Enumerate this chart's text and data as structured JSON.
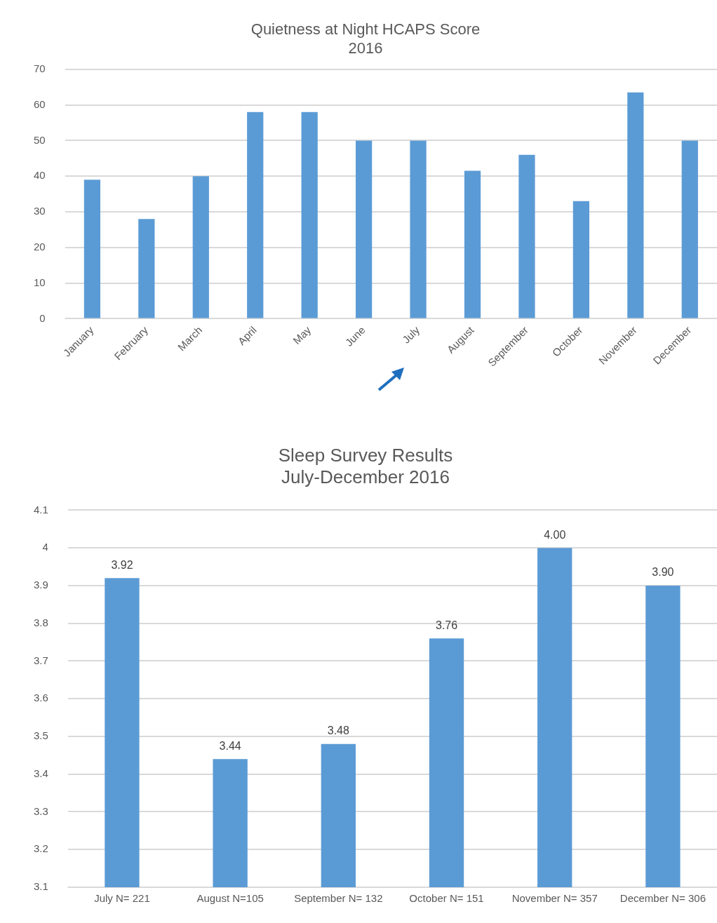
{
  "chart_data": [
    {
      "type": "bar",
      "title": "Quietness at Night HCAPS Score\n2016",
      "categories": [
        "January",
        "February",
        "March",
        "April",
        "May",
        "June",
        "July",
        "August",
        "September",
        "October",
        "November",
        "December"
      ],
      "values": [
        39,
        28,
        40,
        58,
        58,
        50,
        50,
        41.5,
        46,
        33,
        63.5,
        50
      ],
      "color": "#5b9bd5",
      "ylim": [
        0,
        70
      ],
      "yticks": [
        0,
        10,
        20,
        30,
        40,
        50,
        60,
        70
      ],
      "grid": "y",
      "legend": false
    },
    {
      "type": "bar",
      "title": "Sleep Survey Results\nJuly-December 2016",
      "categories": [
        "July N= 221",
        "August N=105",
        "September N= 132",
        "October N= 151",
        "November N= 357",
        "December N= 306"
      ],
      "values": [
        3.92,
        3.44,
        3.48,
        3.76,
        4.0,
        3.9
      ],
      "value_labels": [
        "3.92",
        "3.44",
        "3.48",
        "3.76",
        "4.00",
        "3.90"
      ],
      "color": "#5b9bd5",
      "ylim": [
        3.1,
        4.1
      ],
      "yticks": [
        3.1,
        3.2,
        3.3,
        3.4,
        3.5,
        3.6,
        3.7,
        3.8,
        3.9,
        4,
        4.1
      ],
      "grid": "y",
      "legend": false
    }
  ]
}
